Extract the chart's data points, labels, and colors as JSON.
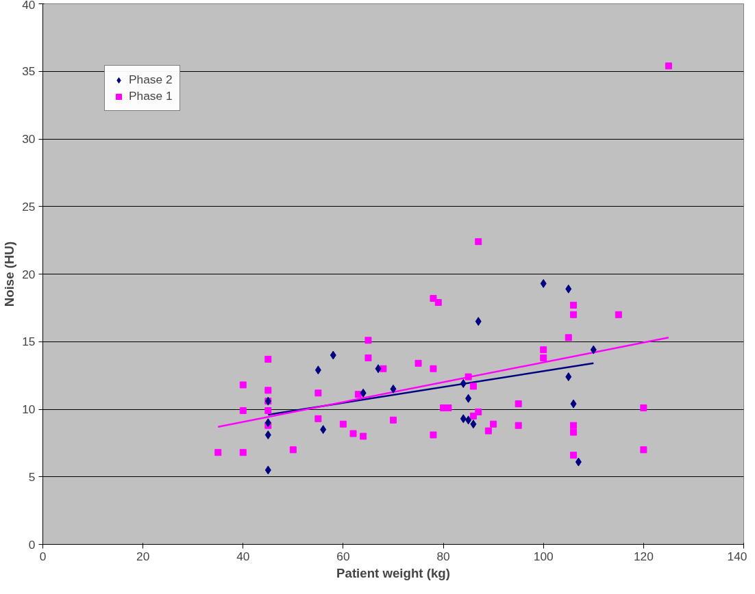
{
  "chart_data": {
    "type": "scatter",
    "xlabel": "Patient weight (kg)",
    "ylabel": "Noise (HU)",
    "xlim": [
      0,
      140
    ],
    "xticks": [
      0,
      20,
      40,
      60,
      80,
      100,
      120,
      140
    ],
    "ylim": [
      0,
      40
    ],
    "yticks": [
      0,
      5,
      10,
      15,
      20,
      25,
      30,
      35,
      40
    ],
    "grid": "y",
    "legend": "top left",
    "series": [
      {
        "name": "Phase 2",
        "color": "#000080",
        "marker": "diamond",
        "x": [
          45,
          45,
          45,
          45,
          55,
          56,
          58,
          64,
          67,
          70,
          84,
          84,
          85,
          85,
          86,
          87,
          100,
          105,
          105,
          106,
          107,
          110
        ],
        "values": [
          10.6,
          9.0,
          8.1,
          5.5,
          12.9,
          8.5,
          14.0,
          11.2,
          13.0,
          11.5,
          11.9,
          9.3,
          10.8,
          9.2,
          8.9,
          16.5,
          19.3,
          18.9,
          12.4,
          10.4,
          6.1,
          14.4
        ]
      },
      {
        "name": "Phase 1",
        "color": "#ff00ff",
        "marker": "square",
        "x": [
          35,
          40,
          40,
          40,
          45,
          45,
          45,
          45,
          45,
          50,
          55,
          55,
          60,
          62,
          63,
          64,
          65,
          65,
          68,
          70,
          75,
          78,
          78,
          78,
          79,
          80,
          81,
          85,
          86,
          86,
          87,
          87,
          89,
          90,
          95,
          95,
          100,
          100,
          105,
          106,
          106,
          106,
          106,
          106,
          115,
          120,
          120,
          125
        ],
        "values": [
          6.8,
          11.8,
          9.9,
          6.8,
          13.7,
          11.4,
          10.6,
          9.9,
          8.8,
          7.0,
          11.2,
          9.3,
          8.9,
          8.2,
          11.1,
          8.0,
          15.1,
          13.8,
          13.0,
          9.2,
          13.4,
          18.2,
          13.0,
          8.1,
          17.9,
          10.1,
          10.1,
          12.4,
          11.7,
          9.5,
          22.4,
          9.8,
          8.4,
          8.9,
          10.4,
          8.8,
          14.4,
          13.8,
          15.3,
          17.7,
          17.0,
          8.8,
          8.3,
          6.6,
          17.0,
          10.1,
          7.0,
          35.4
        ]
      },
      {
        "type": "line",
        "color": "#000080",
        "x": [
          45,
          110
        ],
        "values": [
          9.6,
          13.4
        ]
      },
      {
        "type": "line",
        "color": "#ff00ff",
        "x": [
          35,
          125
        ],
        "values": [
          8.7,
          15.3
        ]
      }
    ]
  }
}
